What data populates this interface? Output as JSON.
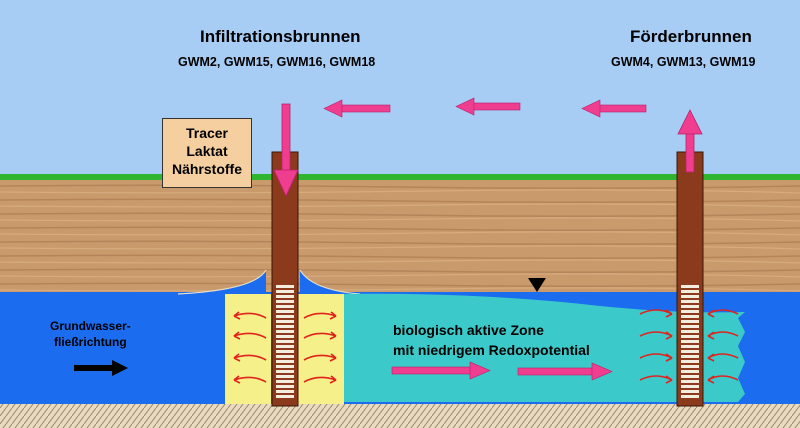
{
  "infiltration": {
    "title": "Infiltrationsbrunnen",
    "wells": "GWM2, GWM15, GWM16, GWM18"
  },
  "production": {
    "title": "Förderbrunnen",
    "wells": "GWM4, GWM13, GWM19"
  },
  "tracer_box": {
    "line1": "Tracer",
    "line2": "Laktat",
    "line3": "Nährstoffe"
  },
  "zone_label": {
    "line1": "biologisch aktive Zone",
    "line2": "mit niedrigem Redoxpotential"
  },
  "flow_label": {
    "line1": "Grundwasser-",
    "line2": "fließrichtung"
  },
  "colors": {
    "sky": "#a8cdf5",
    "grass": "#2fb52f",
    "soil": "#c99a6b",
    "groundwater": "#1c6cf0",
    "active_zone": "#3cc9c9",
    "infiltration_zone": "#f5f08a",
    "well_casing": "#8b3a1c",
    "arrow_pink": "#ef3d8f",
    "arrow_red": "#e0231c"
  }
}
